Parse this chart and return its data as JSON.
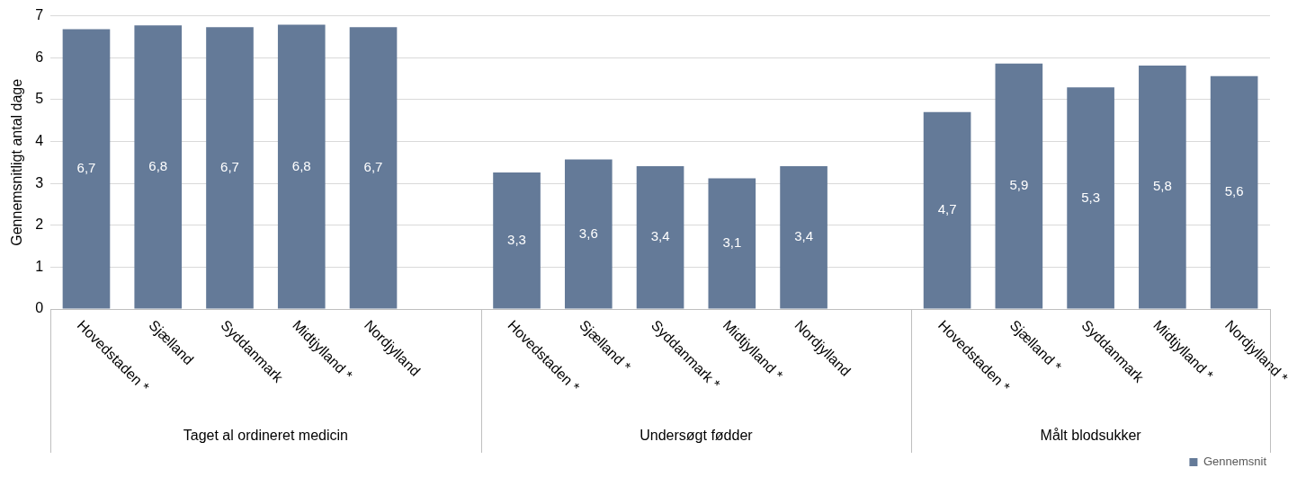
{
  "chart_data": {
    "type": "bar",
    "ylabel": "Gennemsnitligt antal dage",
    "categories": [
      "Hovedstaden *",
      "Sjælland",
      "Syddanmark",
      "Midtjylland *",
      "Nordjylland",
      null,
      "Hovedstaden *",
      "Sjælland *",
      "Syddanmark *",
      "Midtjylland *",
      "Nordjylland",
      null,
      "Hovedstaden *",
      "Sjælland *",
      "Syddanmark",
      "Midtjylland *",
      "Nordjylland *"
    ],
    "series": [
      {
        "name": "Gennemsnit",
        "color": "#647a98",
        "values": [
          6.68,
          6.77,
          6.73,
          6.79,
          6.73,
          null,
          3.26,
          3.57,
          3.41,
          3.12,
          3.41,
          null,
          4.7,
          5.86,
          5.29,
          5.81,
          5.56
        ],
        "value_labels": [
          "6,7",
          "6,8",
          "6,7",
          "6,8",
          "6,7",
          null,
          "3,3",
          "3,6",
          "3,4",
          "3,1",
          "3,4",
          null,
          "4,7",
          "5,9",
          "5,3",
          "5,8",
          "5,6"
        ]
      }
    ],
    "annotations": [
      "Taget al ordineret medicin",
      "Undersøgt fødder",
      "Målt blodsukker"
    ],
    "ylim": [
      0,
      7
    ],
    "yticks": [
      0,
      1,
      2,
      3,
      4,
      5,
      6,
      7
    ],
    "grid": "y",
    "legend": "bottom right"
  }
}
